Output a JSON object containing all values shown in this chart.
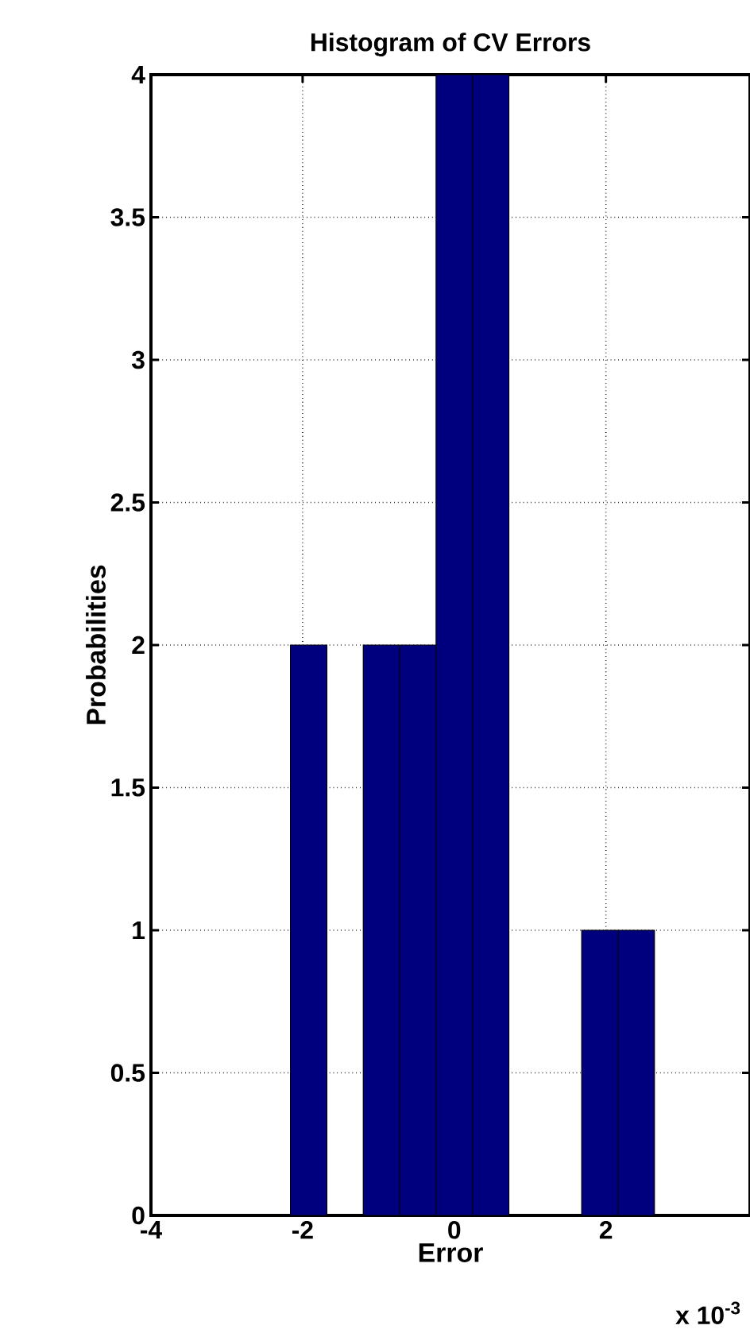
{
  "chart_data": {
    "type": "histogram",
    "title": "Histogram of CV Errors",
    "xlabel": "Error",
    "ylabel": "Probabilities",
    "bins": [
      -2.16,
      -1.68,
      -1.2,
      -0.72,
      -0.24,
      0.24,
      0.72,
      1.2,
      1.68,
      2.16,
      2.64
    ],
    "values": [
      2,
      0,
      2,
      2,
      4,
      4,
      0,
      0,
      1,
      1
    ],
    "color": "#00007f",
    "xlim": [
      -4,
      3.9
    ],
    "ylim": [
      0,
      4
    ],
    "xticks": [
      -4,
      -2,
      0,
      2
    ],
    "yticks": [
      0,
      0.5,
      1,
      1.5,
      2,
      2.5,
      3,
      3.5,
      4
    ],
    "grid": true,
    "annotations": [
      "x 10$^{-3}$"
    ]
  }
}
